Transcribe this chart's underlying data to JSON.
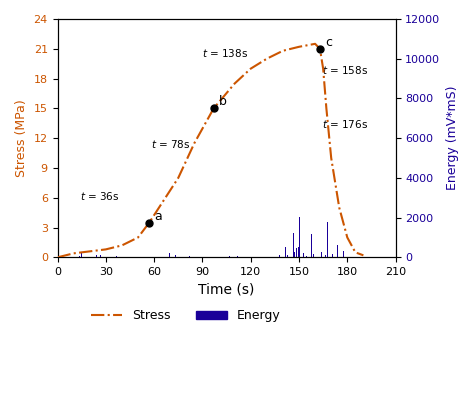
{
  "title": "",
  "xlabel": "Time (s)",
  "ylabel_left": "Stress (MPa)",
  "ylabel_right": "Energy (mV*mS)",
  "xlim": [
    0,
    210
  ],
  "ylim_stress": [
    0,
    24
  ],
  "ylim_energy": [
    0,
    12000
  ],
  "xticks": [
    0,
    30,
    60,
    90,
    120,
    150,
    180,
    210
  ],
  "yticks_stress": [
    0,
    3,
    6,
    9,
    12,
    15,
    18,
    21,
    24
  ],
  "yticks_energy": [
    0,
    2000,
    4000,
    6000,
    8000,
    10000,
    12000
  ],
  "stress_color": "#cc5500",
  "energy_color": "#1a0099",
  "background_color": "#ffffff",
  "stress_t": [
    0,
    5,
    10,
    20,
    30,
    40,
    50,
    57,
    65,
    75,
    85,
    97,
    110,
    120,
    130,
    140,
    150,
    160,
    163,
    165,
    167,
    170,
    175,
    180,
    185,
    190
  ],
  "stress_v": [
    0,
    0.2,
    0.4,
    0.6,
    0.8,
    1.2,
    2.0,
    3.5,
    5.5,
    8.0,
    11.5,
    15.0,
    17.5,
    19.0,
    20.0,
    20.8,
    21.2,
    21.5,
    21.0,
    19.0,
    15.0,
    10.0,
    5.0,
    2.0,
    0.5,
    0.2
  ],
  "points": {
    "a": {
      "t": 57,
      "stress": 3.5
    },
    "b": {
      "t": 97,
      "stress": 15.0
    },
    "c": {
      "t": 163,
      "stress": 21.0
    }
  }
}
